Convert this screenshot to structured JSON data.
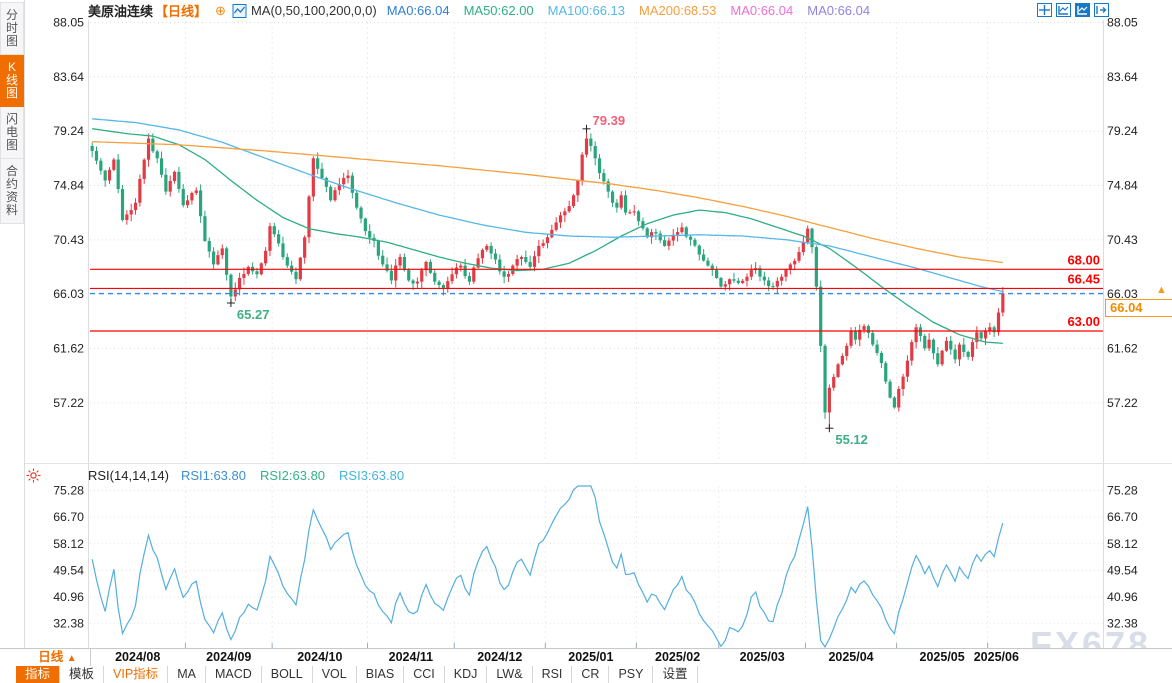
{
  "window": {
    "watermark": "FX678"
  },
  "sidebar": {
    "items": [
      {
        "id": "time-chart",
        "label": "分时图",
        "selected": false
      },
      {
        "id": "kline-chart",
        "label": "K线图",
        "selected": true
      },
      {
        "id": "flash-chart",
        "label": "闪电图",
        "selected": false
      },
      {
        "id": "contract-info",
        "label": "合约资料",
        "selected": false
      }
    ]
  },
  "header": {
    "title": "美原油连续",
    "period_tag": "【日线】",
    "ma_formula": "MA(0,50,100,200,0,0)",
    "ma_values": [
      {
        "label": "MA0:66.04",
        "color": "#2e7fd2"
      },
      {
        "label": "MA50:62.00",
        "color": "#2fae82"
      },
      {
        "label": "MA100:66.13",
        "color": "#55b7e8"
      },
      {
        "label": "MA200:68.53",
        "color": "#f5a03c"
      },
      {
        "label": "MA0:66.04",
        "color": "#ee6fd5"
      },
      {
        "label": "MA0:66.04",
        "color": "#9184e0"
      }
    ],
    "icons": [
      "crosshair-tool",
      "axis-scale",
      "axis-scale-active",
      "panel-toggle"
    ]
  },
  "rsi_header": {
    "formula": "RSI(14,14,14)",
    "values": [
      {
        "label": "RSI1:63.80",
        "color": "#3b8fd4"
      },
      {
        "label": "RSI2:63.80",
        "color": "#33b184"
      },
      {
        "label": "RSI3:63.80",
        "color": "#45b4dc"
      }
    ]
  },
  "xaxis": {
    "period_selector": "日线"
  },
  "toolbar": {
    "items": [
      {
        "label": "指标",
        "selected": true
      },
      {
        "label": "模板"
      },
      {
        "label": "VIP指标",
        "accent": true
      },
      {
        "label": "MA"
      },
      {
        "label": "MACD"
      },
      {
        "label": "BOLL"
      },
      {
        "label": "VOL"
      },
      {
        "label": "BIAS"
      },
      {
        "label": "CCI"
      },
      {
        "label": "KDJ"
      },
      {
        "label": "LW&"
      },
      {
        "label": "RSI"
      },
      {
        "label": "CR"
      },
      {
        "label": "PSY"
      },
      {
        "label": "设置"
      }
    ]
  },
  "chart_data": {
    "type": "candlestick",
    "symbol": "美原油连续",
    "period": "日线",
    "bars": 211,
    "price_axis_ticks": [
      "88.05",
      "83.64",
      "79.24",
      "74.84",
      "70.43",
      "66.03",
      "61.62",
      "57.22"
    ],
    "rsi_axis_ticks": [
      "75.28",
      "66.70",
      "58.12",
      "49.54",
      "40.96",
      "32.38"
    ],
    "months": [
      {
        "label": "2024/08",
        "start": 0
      },
      {
        "label": "2024/09",
        "start": 22
      },
      {
        "label": "2024/10",
        "start": 42
      },
      {
        "label": "2024/11",
        "start": 64
      },
      {
        "label": "2024/12",
        "start": 84
      },
      {
        "label": "2025/01",
        "start": 105
      },
      {
        "label": "2025/02",
        "start": 126
      },
      {
        "label": "2025/03",
        "start": 145
      },
      {
        "label": "2025/04",
        "start": 165
      },
      {
        "label": "2025/05",
        "start": 186
      },
      {
        "label": "2025/06",
        "start": 207
      }
    ],
    "close_keypoints": [
      [
        0,
        77.6
      ],
      [
        2,
        76.0
      ],
      [
        3,
        75.2
      ],
      [
        5,
        76.9
      ],
      [
        7,
        72.0
      ],
      [
        9,
        72.8
      ],
      [
        10,
        73.4
      ],
      [
        13,
        78.6
      ],
      [
        15,
        77.0
      ],
      [
        17,
        74.3
      ],
      [
        19,
        75.9
      ],
      [
        21,
        73.2
      ],
      [
        24,
        74.4
      ],
      [
        26,
        70.3
      ],
      [
        28,
        68.4
      ],
      [
        30,
        69.7
      ],
      [
        32,
        65.8
      ],
      [
        34,
        67.3
      ],
      [
        36,
        68.2
      ],
      [
        38,
        67.6
      ],
      [
        40,
        69.5
      ],
      [
        41,
        71.5
      ],
      [
        43,
        70.1
      ],
      [
        45,
        68.3
      ],
      [
        47,
        67.2
      ],
      [
        49,
        70.6
      ],
      [
        50,
        73.9
      ],
      [
        51,
        77.0
      ],
      [
        53,
        75.4
      ],
      [
        55,
        73.6
      ],
      [
        57,
        74.9
      ],
      [
        59,
        75.6
      ],
      [
        61,
        73.0
      ],
      [
        63,
        71.1
      ],
      [
        65,
        70.3
      ],
      [
        67,
        68.4
      ],
      [
        69,
        67.1
      ],
      [
        71,
        69.0
      ],
      [
        73,
        67.1
      ],
      [
        75,
        67.0
      ],
      [
        77,
        68.6
      ],
      [
        79,
        67.0
      ],
      [
        81,
        66.4
      ],
      [
        83,
        67.6
      ],
      [
        85,
        68.3
      ],
      [
        87,
        67.0
      ],
      [
        89,
        68.9
      ],
      [
        91,
        69.9
      ],
      [
        93,
        68.8
      ],
      [
        95,
        67.4
      ],
      [
        97,
        68.3
      ],
      [
        99,
        69.0
      ],
      [
        101,
        68.2
      ],
      [
        103,
        69.9
      ],
      [
        105,
        70.6
      ],
      [
        107,
        71.8
      ],
      [
        109,
        72.7
      ],
      [
        111,
        74.0
      ],
      [
        112,
        75.2
      ],
      [
        113,
        77.3
      ],
      [
        114,
        78.6
      ],
      [
        115,
        78.0
      ],
      [
        116,
        77.0
      ],
      [
        117,
        75.8
      ],
      [
        119,
        74.3
      ],
      [
        121,
        73.0
      ],
      [
        122,
        74.0
      ],
      [
        123,
        72.6
      ],
      [
        125,
        72.7
      ],
      [
        126,
        71.9
      ],
      [
        128,
        70.6
      ],
      [
        130,
        70.9
      ],
      [
        132,
        69.9
      ],
      [
        134,
        70.8
      ],
      [
        136,
        71.4
      ],
      [
        138,
        70.4
      ],
      [
        140,
        69.2
      ],
      [
        142,
        68.3
      ],
      [
        144,
        67.3
      ],
      [
        145,
        66.6
      ],
      [
        147,
        67.2
      ],
      [
        149,
        66.9
      ],
      [
        151,
        67.4
      ],
      [
        153,
        68.1
      ],
      [
        155,
        67.1
      ],
      [
        157,
        66.6
      ],
      [
        159,
        67.4
      ],
      [
        161,
        68.4
      ],
      [
        163,
        69.4
      ],
      [
        164,
        70.2
      ],
      [
        165,
        71.3
      ],
      [
        166,
        69.8
      ],
      [
        167,
        66.6
      ],
      [
        168,
        61.8
      ],
      [
        169,
        56.4
      ],
      [
        170,
        58.4
      ],
      [
        172,
        60.3
      ],
      [
        174,
        61.8
      ],
      [
        175,
        63.0
      ],
      [
        176,
        62.3
      ],
      [
        178,
        63.4
      ],
      [
        180,
        61.9
      ],
      [
        182,
        60.4
      ],
      [
        183,
        58.9
      ],
      [
        184,
        57.6
      ],
      [
        185,
        56.8
      ],
      [
        186,
        58.3
      ],
      [
        187,
        59.3
      ],
      [
        188,
        60.6
      ],
      [
        189,
        62.1
      ],
      [
        190,
        63.3
      ],
      [
        191,
        62.6
      ],
      [
        192,
        61.6
      ],
      [
        193,
        62.3
      ],
      [
        194,
        61.2
      ],
      [
        195,
        60.3
      ],
      [
        196,
        61.4
      ],
      [
        197,
        62.2
      ],
      [
        198,
        61.5
      ],
      [
        199,
        60.7
      ],
      [
        200,
        61.9
      ],
      [
        201,
        61.3
      ],
      [
        202,
        60.9
      ],
      [
        203,
        62.1
      ],
      [
        204,
        62.9
      ],
      [
        205,
        62.4
      ],
      [
        206,
        63.0
      ],
      [
        207,
        63.3
      ],
      [
        208,
        62.9
      ],
      [
        209,
        64.5
      ],
      [
        210,
        66.04
      ]
    ],
    "markers": {
      "high": {
        "bar": 114,
        "price": 79.39,
        "label": "79.39"
      },
      "lows": [
        {
          "bar": 32,
          "price": 65.27,
          "label": "65.27"
        },
        {
          "bar": 170,
          "price": 55.12,
          "label": "55.12"
        }
      ]
    },
    "horizontal_lines": [
      {
        "price": 68.0,
        "label": "68.00"
      },
      {
        "price": 66.45,
        "label": "66.45"
      },
      {
        "price": 63.0,
        "label": "63.00"
      }
    ],
    "last_price": {
      "value": 66.04,
      "label": "66.04",
      "axis_label": "66.03"
    },
    "moving_averages": [
      {
        "name": "MA50",
        "color": "#2fae82",
        "points": [
          [
            0,
            79.4
          ],
          [
            8,
            79.0
          ],
          [
            14,
            78.8
          ],
          [
            20,
            78.1
          ],
          [
            26,
            76.9
          ],
          [
            32,
            75.2
          ],
          [
            38,
            73.6
          ],
          [
            44,
            72.2
          ],
          [
            50,
            71.3
          ],
          [
            56,
            70.9
          ],
          [
            62,
            70.6
          ],
          [
            68,
            70.2
          ],
          [
            74,
            69.6
          ],
          [
            80,
            69.0
          ],
          [
            86,
            68.5
          ],
          [
            92,
            68.1
          ],
          [
            98,
            67.9
          ],
          [
            104,
            68.0
          ],
          [
            110,
            68.5
          ],
          [
            116,
            69.5
          ],
          [
            122,
            70.7
          ],
          [
            128,
            71.7
          ],
          [
            134,
            72.4
          ],
          [
            140,
            72.8
          ],
          [
            146,
            72.6
          ],
          [
            152,
            72.1
          ],
          [
            158,
            71.4
          ],
          [
            164,
            70.7
          ],
          [
            170,
            69.7
          ],
          [
            176,
            68.2
          ],
          [
            182,
            66.6
          ],
          [
            188,
            65.1
          ],
          [
            194,
            63.7
          ],
          [
            200,
            62.7
          ],
          [
            206,
            62.1
          ],
          [
            210,
            62.0
          ]
        ]
      },
      {
        "name": "MA100",
        "color": "#55b7e8",
        "points": [
          [
            0,
            80.2
          ],
          [
            10,
            79.9
          ],
          [
            20,
            79.3
          ],
          [
            30,
            78.3
          ],
          [
            40,
            77.0
          ],
          [
            50,
            75.7
          ],
          [
            60,
            74.5
          ],
          [
            70,
            73.4
          ],
          [
            80,
            72.4
          ],
          [
            90,
            71.6
          ],
          [
            100,
            71.0
          ],
          [
            110,
            70.7
          ],
          [
            120,
            70.6
          ],
          [
            130,
            70.7
          ],
          [
            140,
            70.8
          ],
          [
            150,
            70.7
          ],
          [
            160,
            70.4
          ],
          [
            170,
            69.9
          ],
          [
            180,
            69.0
          ],
          [
            190,
            68.1
          ],
          [
            200,
            67.1
          ],
          [
            206,
            66.5
          ],
          [
            210,
            66.2
          ]
        ]
      },
      {
        "name": "MA200",
        "color": "#f5a03c",
        "points": [
          [
            0,
            78.35
          ],
          [
            20,
            78.1
          ],
          [
            40,
            77.6
          ],
          [
            60,
            77.0
          ],
          [
            80,
            76.4
          ],
          [
            100,
            75.7
          ],
          [
            110,
            75.3
          ],
          [
            120,
            74.9
          ],
          [
            130,
            74.4
          ],
          [
            140,
            73.8
          ],
          [
            150,
            73.1
          ],
          [
            160,
            72.3
          ],
          [
            170,
            71.4
          ],
          [
            180,
            70.5
          ],
          [
            190,
            69.7
          ],
          [
            200,
            69.0
          ],
          [
            210,
            68.55
          ]
        ]
      }
    ],
    "rsi": {
      "periods": [
        14,
        14,
        14
      ],
      "current": 63.8,
      "color": "#54aede"
    },
    "colors": {
      "up": "#e23b45",
      "down": "#28a57d",
      "hline": "#ff0000",
      "last_price_line": "#2c8cf0",
      "high_label": "#f0607a",
      "low_label": "#3fae85",
      "accent": "#f06e00"
    }
  }
}
